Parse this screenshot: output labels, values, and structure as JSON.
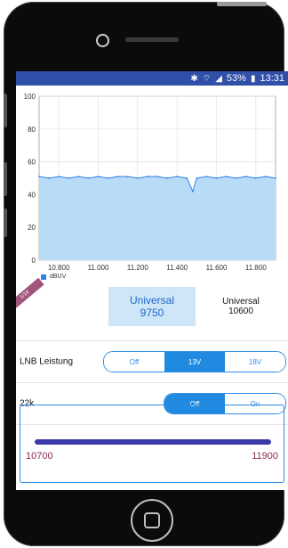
{
  "status_bar": {
    "bluetooth_icon": "bluetooth-icon",
    "wifi_icon": "wifi-icon",
    "signal_icon": "signal-icon",
    "battery": "53%",
    "time": "13:31"
  },
  "chart_data": {
    "type": "area",
    "title": "",
    "xlabel": "",
    "ylabel": "",
    "x_ticks": [
      "10.800",
      "11.000",
      "11.200",
      "11.400",
      "11.600",
      "11.800"
    ],
    "y_ticks": [
      "0",
      "20",
      "40",
      "60",
      "80",
      "100"
    ],
    "xlim": [
      10700,
      11900
    ],
    "ylim": [
      0,
      100
    ],
    "grid": true,
    "legend": "bottom-left",
    "series": [
      {
        "name": "dBUV",
        "color": "#2f80ed",
        "x": [
          10700,
          10750,
          10800,
          10850,
          10900,
          10950,
          11000,
          11050,
          11100,
          11150,
          11200,
          11250,
          11300,
          11350,
          11400,
          11450,
          11480,
          11500,
          11550,
          11600,
          11650,
          11700,
          11750,
          11800,
          11850,
          11900
        ],
        "values": [
          51,
          50,
          51,
          50,
          51,
          50,
          51,
          50,
          51,
          51,
          50,
          51,
          51,
          50,
          51,
          50,
          42,
          50,
          51,
          50,
          51,
          50,
          51,
          50,
          51,
          50
        ]
      }
    ]
  },
  "satellite": {
    "corner_tag": "1/18",
    "options": [
      {
        "line1": "Universal",
        "line2": "9750",
        "active": true
      },
      {
        "line1": "Universal",
        "line2": "10600",
        "active": false
      }
    ]
  },
  "lnb": {
    "label": "LNB Leistung",
    "options": [
      "Off",
      "13V",
      "18V"
    ],
    "selected": "13V"
  },
  "k22": {
    "label": "22k",
    "options": [
      "Off",
      "On"
    ],
    "selected": "Off"
  },
  "range": {
    "min": "10700",
    "max": "11900"
  }
}
